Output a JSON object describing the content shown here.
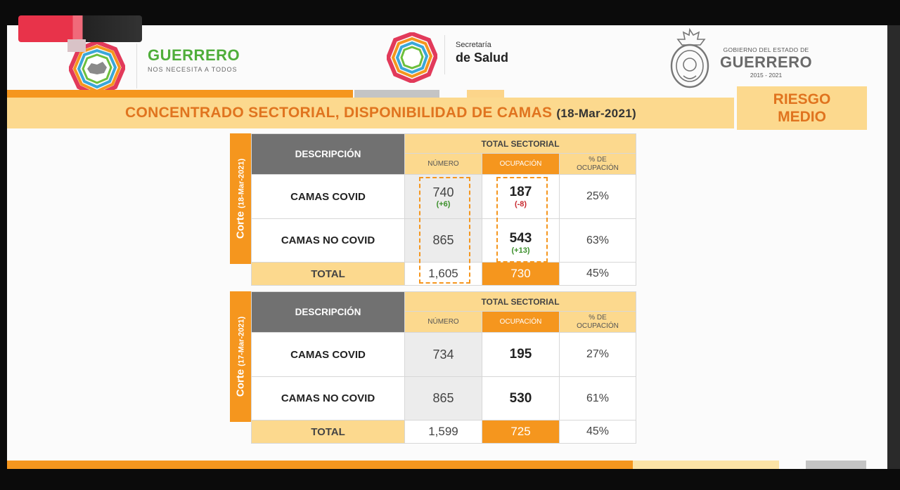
{
  "header": {
    "guerrero_logo_title": "GUERRERO",
    "guerrero_logo_subtitle": "NOS NECESITA A TODOS",
    "salud_small": "Secretaría",
    "salud_big": "de Salud",
    "gob_small": "GOBIERNO DEL ESTADO DE",
    "gob_big": "GUERRERO",
    "gob_years": "2015 - 2021"
  },
  "title": {
    "main": "CONCENTRADO SECTORIAL, DISPONIBILIDAD DE CAMAS",
    "date": "(18-Mar-2021)"
  },
  "risk": {
    "line1": "RIESGO",
    "line2": "MEDIO"
  },
  "colors": {
    "orange": "#f5961e",
    "yellow": "#fcd98e",
    "gray": "#717171",
    "green": "#4fae3a",
    "red": "#c8282e"
  },
  "tables": [
    {
      "corte_label": "Corte",
      "corte_date": "(18-Mar-2021)",
      "desc_header": "DESCRIPCIÓN",
      "total_header": "TOTAL SECTORIAL",
      "num_header": "NÚMERO",
      "occ_header": "OCUPACIÓN",
      "pct_header_1": "% DE",
      "pct_header_2": "OCUPACIÓN",
      "rows": [
        {
          "label": "CAMAS COVID",
          "numero": "740",
          "numero_delta": "(+6)",
          "ocupacion": "187",
          "ocupacion_delta": "(-8)",
          "pct": "25%"
        },
        {
          "label": "CAMAS NO COVID",
          "numero": "865",
          "numero_delta": "",
          "ocupacion": "543",
          "ocupacion_delta": "(+13)",
          "pct": "63%"
        }
      ],
      "total": {
        "label": "TOTAL",
        "numero": "1,605",
        "ocupacion": "730",
        "pct": "45%"
      }
    },
    {
      "corte_label": "Corte",
      "corte_date": "(17-Mar-2021)",
      "desc_header": "DESCRIPCIÓN",
      "total_header": "TOTAL SECTORIAL",
      "num_header": "NÚMERO",
      "occ_header": "OCUPACIÓN",
      "pct_header_1": "% DE",
      "pct_header_2": "OCUPACIÓN",
      "rows": [
        {
          "label": "CAMAS COVID",
          "numero": "734",
          "numero_delta": "",
          "ocupacion": "195",
          "ocupacion_delta": "",
          "pct": "27%"
        },
        {
          "label": "CAMAS NO COVID",
          "numero": "865",
          "numero_delta": "",
          "ocupacion": "530",
          "ocupacion_delta": "",
          "pct": "61%"
        }
      ],
      "total": {
        "label": "TOTAL",
        "numero": "1,599",
        "ocupacion": "725",
        "pct": "45%"
      }
    }
  ]
}
